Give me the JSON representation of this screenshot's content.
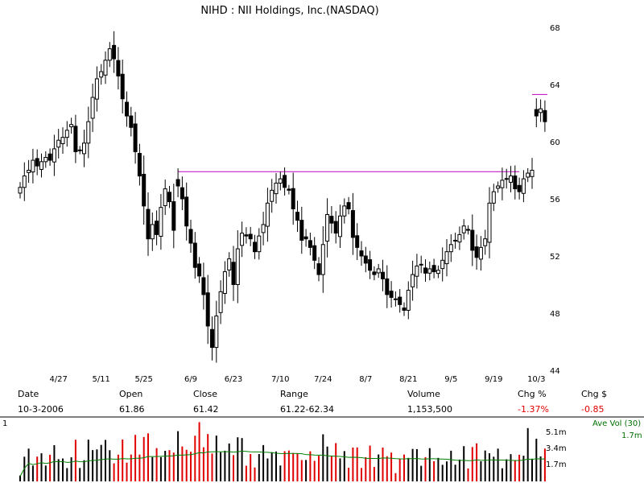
{
  "title": "NIHD : NII Holdings, Inc.(NASDAQ)",
  "info": {
    "headers": {
      "date": "Date",
      "open": "Open",
      "close": "Close",
      "range": "Range",
      "volume": "Volume",
      "chg_pct": "Chg %",
      "chg_dollar": "Chg $"
    },
    "values": {
      "date": "10-3-2006",
      "open": "61.86",
      "close": "61.42",
      "range": "61.22-62.34",
      "volume": "1,153,500",
      "chg_pct": "-1.37%",
      "chg_dollar": "-0.85"
    }
  },
  "volume_panel": {
    "scale_label": "1",
    "ave_vol_label": "Ave Vol (30)",
    "ave_vol_value": "1.7m",
    "tick_labels": [
      "5.1m",
      "3.4m",
      "1.7m"
    ]
  },
  "colors": {
    "up": "#000000",
    "down": "#e00000",
    "ma": "#008000",
    "resistance": "#c000c0",
    "stop": "#c000c0"
  },
  "chart_data": {
    "type": "candlestick",
    "y_ticks": [
      44,
      48,
      52,
      56,
      60,
      64,
      68
    ],
    "ylim": [
      44,
      68
    ],
    "x_tick_labels": [
      {
        "label": "4/27",
        "index": 9
      },
      {
        "label": "5/11",
        "index": 19
      },
      {
        "label": "5/25",
        "index": 29
      },
      {
        "label": "6/9",
        "index": 40
      },
      {
        "label": "6/23",
        "index": 50
      },
      {
        "label": "7/10",
        "index": 61
      },
      {
        "label": "7/24",
        "index": 71
      },
      {
        "label": "8/7",
        "index": 81
      },
      {
        "label": "8/21",
        "index": 91
      },
      {
        "label": "9/5",
        "index": 101
      },
      {
        "label": "9/19",
        "index": 111
      },
      {
        "label": "10/3",
        "index": 121
      }
    ],
    "resistance_level": 57.9,
    "resistance_range": [
      37,
      117
    ],
    "upper_level": 63.3,
    "upper_range": [
      120,
      123
    ],
    "closes": [
      56.8,
      57.6,
      58.0,
      58.7,
      58.3,
      58.6,
      58.9,
      58.7,
      59.5,
      60.1,
      60.3,
      60.8,
      61.2,
      59.3,
      59.4,
      59.9,
      61.4,
      63.1,
      64.4,
      64.9,
      65.7,
      66.5,
      65.8,
      64.6,
      63.0,
      61.8,
      61.0,
      59.3,
      57.6,
      55.5,
      53.2,
      54.2,
      53.5,
      55.4,
      56.7,
      55.8,
      53.8,
      56.9,
      56.0,
      54.1,
      52.9,
      51.2,
      50.6,
      49.3,
      47.1,
      45.6,
      47.8,
      49.5,
      50.9,
      51.8,
      50.0,
      52.5,
      53.6,
      53.4,
      53.2,
      52.3,
      53.4,
      54.2,
      55.7,
      56.6,
      57.1,
      57.4,
      56.8,
      56.6,
      55.3,
      54.5,
      53.1,
      53.2,
      52.6,
      51.7,
      50.7,
      52.8,
      54.9,
      54.3,
      53.6,
      54.8,
      55.5,
      55.3,
      53.3,
      52.6,
      52.0,
      51.5,
      51.0,
      50.7,
      51.1,
      50.4,
      49.3,
      49.1,
      49.0,
      48.6,
      48.2,
      49.6,
      50.7,
      51.3,
      51.4,
      50.8,
      51.1,
      50.9,
      51.0,
      51.7,
      52.3,
      52.8,
      53.1,
      53.5,
      54.1,
      53.8,
      52.4,
      51.9,
      52.6,
      53.2,
      55.7,
      56.5,
      56.9,
      57.3,
      57.4,
      57.6,
      56.7,
      56.5,
      57.4,
      57.8,
      58.0,
      61.8,
      62.3,
      61.4
    ]
  }
}
